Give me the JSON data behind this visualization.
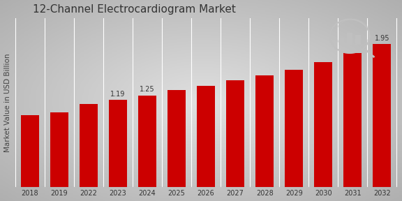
{
  "title": "12-Channel Electrocardiogram Market",
  "ylabel": "Market Value in USD Billion",
  "categories": [
    "2018",
    "2019",
    "2022",
    "2023",
    "2024",
    "2025",
    "2026",
    "2027",
    "2028",
    "2029",
    "2030",
    "2031",
    "2032"
  ],
  "values": [
    0.98,
    1.02,
    1.13,
    1.19,
    1.25,
    1.32,
    1.38,
    1.45,
    1.52,
    1.6,
    1.7,
    1.82,
    1.95
  ],
  "bar_color": "#cc0000",
  "annotations": {
    "2023": "1.19",
    "2024": "1.25",
    "2032": "1.95"
  },
  "bg_center": "#dcdcdc",
  "bg_edge": "#b0b0b0",
  "grid_color": "#ffffff",
  "ylim": [
    0,
    2.3
  ],
  "title_fontsize": 11,
  "ylabel_fontsize": 7.5,
  "tick_fontsize": 7,
  "annotation_fontsize": 7
}
